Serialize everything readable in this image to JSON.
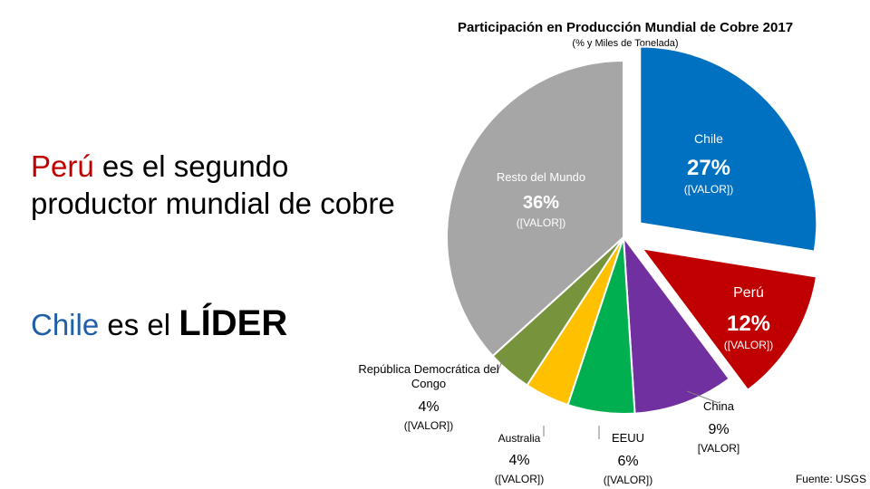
{
  "title": "Participación en Producción Mundial  de Cobre 2017",
  "subtitle": "(% y Miles de Tonelada)",
  "headline": {
    "country": "Perú",
    "rest": " es el segundo productor mundial de cobre"
  },
  "headline2": {
    "country": "Chile",
    "middle": " es el ",
    "emphasis": "LÍDER"
  },
  "source": "Fuente: USGS",
  "chart_data": {
    "type": "pie",
    "title": "Participación en Producción Mundial  de Cobre 2017",
    "subtitle": "(% y Miles de Tonelada)",
    "slices": [
      {
        "name": "Chile",
        "value": 27,
        "pct_label": "27%",
        "value_label": "([VALOR])",
        "color": "#0070c0",
        "exploded": true
      },
      {
        "name": "Perú",
        "value": 12,
        "pct_label": "12%",
        "value_label": "([VALOR])",
        "color": "#c00000",
        "exploded": true
      },
      {
        "name": "China",
        "value": 9,
        "pct_label": "9%",
        "value_label": "[VALOR]",
        "color": "#7030a0",
        "exploded": false
      },
      {
        "name": "EEUU",
        "value": 6,
        "pct_label": "6%",
        "value_label": "([VALOR])",
        "color": "#00b050",
        "exploded": false
      },
      {
        "name": "Australia",
        "value": 4,
        "pct_label": "4%",
        "value_label": "([VALOR])",
        "color": "#ffc000",
        "exploded": false
      },
      {
        "name": "República Democrática del Congo",
        "value": 4,
        "pct_label": "4%",
        "value_label": "([VALOR])",
        "color": "#77933c",
        "exploded": false
      },
      {
        "name": "Resto del Mundo",
        "value": 36,
        "pct_label": "36%",
        "value_label": "([VALOR])",
        "color": "#a6a6a6",
        "exploded": false
      }
    ]
  }
}
